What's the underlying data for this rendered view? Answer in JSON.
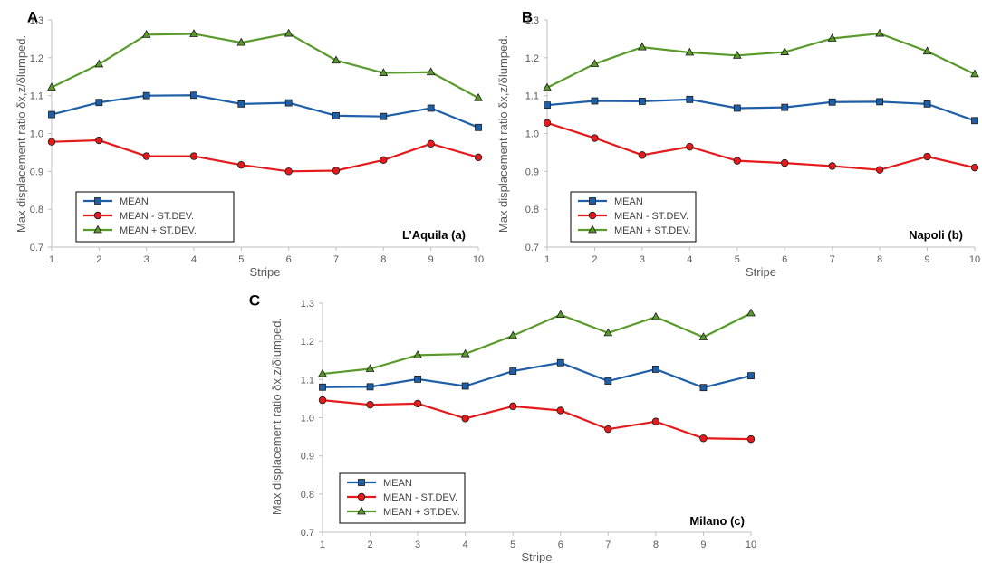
{
  "chart_data": [
    {
      "type": "line",
      "panel_label": "A",
      "title": "L’Aquila (a)",
      "xlabel": "Stripe",
      "ylabel": "Max displacement ratio δx,z/δlumped.",
      "ylim": [
        0.7,
        1.3
      ],
      "yticks": [
        "0.7",
        "0.8",
        "0.9",
        "1.0",
        "1.1",
        "1.2",
        "1.3"
      ],
      "categories": [
        "1",
        "2",
        "3",
        "4",
        "5",
        "6",
        "7",
        "8",
        "9",
        "10"
      ],
      "legend_position": "bottom-left",
      "series": [
        {
          "name": "MEAN",
          "color": "#1F5FA8",
          "marker": "square",
          "values": [
            1.05,
            1.082,
            1.1,
            1.101,
            1.078,
            1.081,
            1.047,
            1.045,
            1.067,
            1.016
          ]
        },
        {
          "name": "MEAN - ST.DEV.",
          "color": "#E41A1C",
          "marker": "circle",
          "values": [
            0.978,
            0.982,
            0.94,
            0.94,
            0.917,
            0.9,
            0.902,
            0.93,
            0.973,
            0.937
          ]
        },
        {
          "name": "MEAN + ST.DEV.",
          "color": "#5A9A2B",
          "marker": "triangle",
          "values": [
            1.122,
            1.183,
            1.261,
            1.263,
            1.24,
            1.264,
            1.193,
            1.16,
            1.162,
            1.094
          ]
        }
      ]
    },
    {
      "type": "line",
      "panel_label": "B",
      "title": "Napoli (b)",
      "xlabel": "Stripe",
      "ylabel": "Max displacement ratio δx,z/δlumped.",
      "ylim": [
        0.7,
        1.3
      ],
      "yticks": [
        "0.7",
        "0.8",
        "0.9",
        "1.0",
        "1.1",
        "1.2",
        "1.3"
      ],
      "categories": [
        "1",
        "2",
        "3",
        "4",
        "5",
        "6",
        "7",
        "8",
        "9",
        "10"
      ],
      "legend_position": "bottom-left",
      "series": [
        {
          "name": "MEAN",
          "color": "#1F5FA8",
          "marker": "square",
          "values": [
            1.075,
            1.086,
            1.085,
            1.09,
            1.067,
            1.069,
            1.083,
            1.084,
            1.078,
            1.034
          ]
        },
        {
          "name": "MEAN - ST.DEV.",
          "color": "#E41A1C",
          "marker": "circle",
          "values": [
            1.028,
            0.988,
            0.943,
            0.965,
            0.928,
            0.922,
            0.914,
            0.904,
            0.939,
            0.91
          ]
        },
        {
          "name": "MEAN + ST.DEV.",
          "color": "#5A9A2B",
          "marker": "triangle",
          "values": [
            1.121,
            1.184,
            1.228,
            1.214,
            1.206,
            1.215,
            1.251,
            1.264,
            1.217,
            1.157
          ]
        }
      ]
    },
    {
      "type": "line",
      "panel_label": "C",
      "title": "Milano (c)",
      "xlabel": "Stripe",
      "ylabel": "Max displacement ratio δx,z/δlumped.",
      "ylim": [
        0.7,
        1.3
      ],
      "yticks": [
        "0.7",
        "0.8",
        "0.9",
        "1.0",
        "1.1",
        "1.2",
        "1.3"
      ],
      "categories": [
        "1",
        "2",
        "3",
        "4",
        "5",
        "6",
        "7",
        "8",
        "9",
        "10"
      ],
      "legend_position": "bottom-left",
      "series": [
        {
          "name": "MEAN",
          "color": "#1F5FA8",
          "marker": "square",
          "values": [
            1.08,
            1.081,
            1.101,
            1.083,
            1.122,
            1.144,
            1.096,
            1.127,
            1.079,
            1.11
          ]
        },
        {
          "name": "MEAN - ST.DEV.",
          "color": "#E41A1C",
          "marker": "circle",
          "values": [
            1.046,
            1.034,
            1.037,
            0.998,
            1.03,
            1.019,
            0.97,
            0.99,
            0.946,
            0.944
          ]
        },
        {
          "name": "MEAN + ST.DEV.",
          "color": "#5A9A2B",
          "marker": "triangle",
          "values": [
            1.115,
            1.128,
            1.164,
            1.167,
            1.215,
            1.27,
            1.222,
            1.264,
            1.211,
            1.274
          ]
        }
      ]
    }
  ]
}
